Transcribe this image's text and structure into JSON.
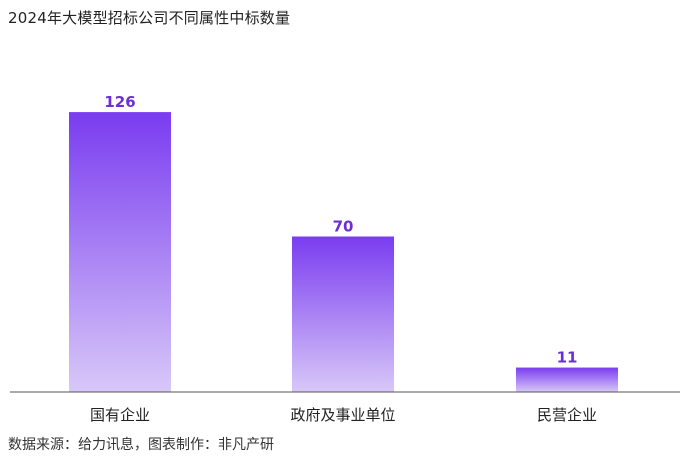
{
  "chart_data": {
    "type": "bar",
    "title": "2024年大模型招标公司不同属性中标数量",
    "categories": [
      "国有企业",
      "政府及事业单位",
      "民营企业"
    ],
    "values": [
      126,
      70,
      11
    ],
    "ylim": [
      0,
      140
    ],
    "grid": false,
    "legend": "none",
    "colors": {
      "bar_top": "#7a3cf0",
      "bar_bottom": "#d8c8f8",
      "label": "#6a2fd6",
      "axis": "#555555"
    }
  },
  "source": "数据来源：给力讯息，图表制作：非凡产研"
}
